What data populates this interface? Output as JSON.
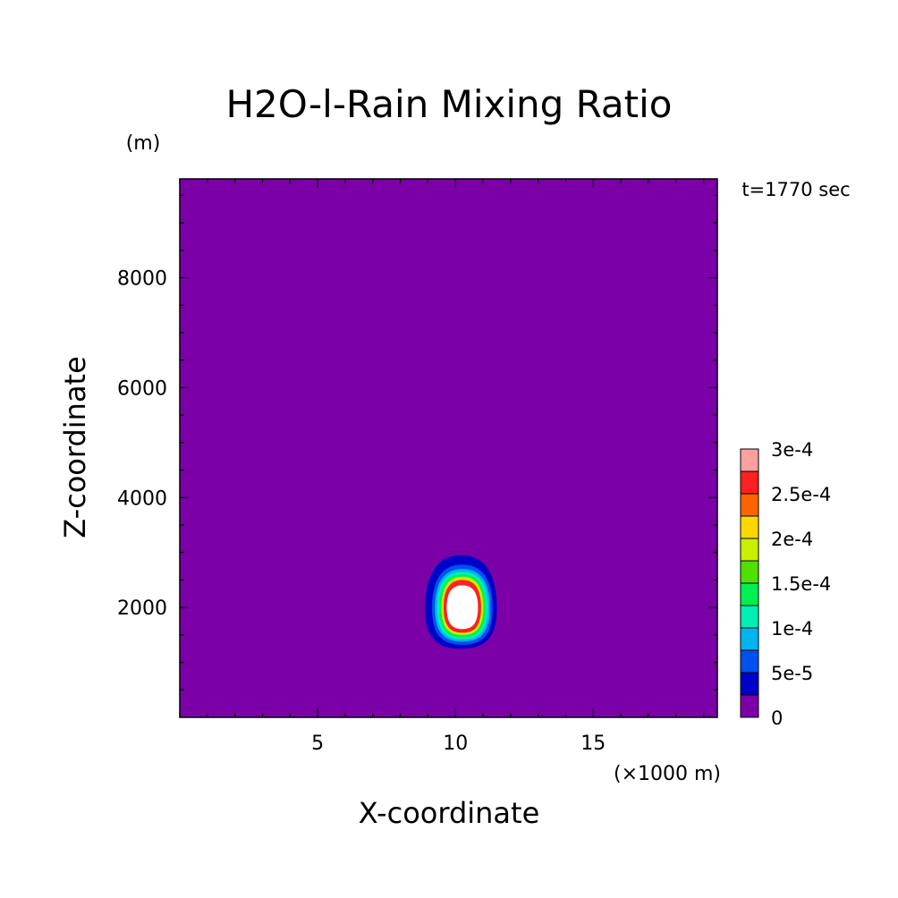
{
  "chart_data": {
    "type": "heatmap",
    "title": "H2O-l-Rain Mixing Ratio",
    "xlabel": "X-coordinate",
    "ylabel": "Z-coordinate",
    "x_unit": "(×1000 m)",
    "y_unit": "(m)",
    "time_label": "t=1770 sec",
    "xlim": [
      0,
      19.5
    ],
    "ylim": [
      0,
      9800
    ],
    "x_ticks": [
      5,
      10,
      15
    ],
    "y_ticks": [
      2000,
      4000,
      6000,
      8000
    ],
    "grid": false,
    "colorbar": {
      "placement": "right",
      "levels": [
        0,
        2.5e-05,
        5e-05,
        7.5e-05,
        0.0001,
        0.000125,
        0.00015,
        0.000175,
        0.0002,
        0.000225,
        0.00025,
        0.000275,
        0.0003
      ],
      "labels": [
        {
          "value": 0,
          "text": "0"
        },
        {
          "value": 5e-05,
          "text": "5e-5"
        },
        {
          "value": 0.0001,
          "text": "1e-4"
        },
        {
          "value": 0.00015,
          "text": "1.5e-4"
        },
        {
          "value": 0.0002,
          "text": "2e-4"
        },
        {
          "value": 0.00025,
          "text": "2.5e-4"
        },
        {
          "value": 0.0003,
          "text": "3e-4"
        }
      ],
      "colors": [
        "#7b00a8",
        "#0000c8",
        "#0050f0",
        "#00b4f0",
        "#00f0b4",
        "#00f050",
        "#50e000",
        "#c8f000",
        "#ffd700",
        "#ff6400",
        "#ff2020",
        "#ffa0a0"
      ]
    },
    "contours": [
      {
        "level": 2.5e-05,
        "color": "#0000c8",
        "center": [
          10.2,
          2050
        ],
        "half_width": 1.3,
        "top": 2950,
        "bottom": 1250
      },
      {
        "level": 5e-05,
        "color": "#0050f0",
        "center": [
          10.25,
          2050
        ],
        "half_width": 1.1,
        "top": 2780,
        "bottom": 1320
      },
      {
        "level": 0.0001,
        "color": "#00b4f0",
        "center": [
          10.25,
          2050
        ],
        "half_width": 1.0,
        "top": 2700,
        "bottom": 1380
      },
      {
        "level": 0.000125,
        "color": "#00f0b4",
        "center": [
          10.25,
          2050
        ],
        "half_width": 0.92,
        "top": 2650,
        "bottom": 1420
      },
      {
        "level": 0.00015,
        "color": "#00f050",
        "center": [
          10.25,
          2050
        ],
        "half_width": 0.84,
        "top": 2600,
        "bottom": 1460
      },
      {
        "level": 0.0002,
        "color": "#c8f000",
        "center": [
          10.25,
          2050
        ],
        "half_width": 0.76,
        "top": 2560,
        "bottom": 1500
      },
      {
        "level": 0.00025,
        "color": "#ff2020",
        "center": [
          10.25,
          2050
        ],
        "half_width": 0.68,
        "top": 2500,
        "bottom": 1540
      },
      {
        "level": 0.0003,
        "color": "#ffffff",
        "center": [
          10.25,
          2050
        ],
        "half_width": 0.6,
        "top": 2420,
        "bottom": 1590
      }
    ]
  }
}
